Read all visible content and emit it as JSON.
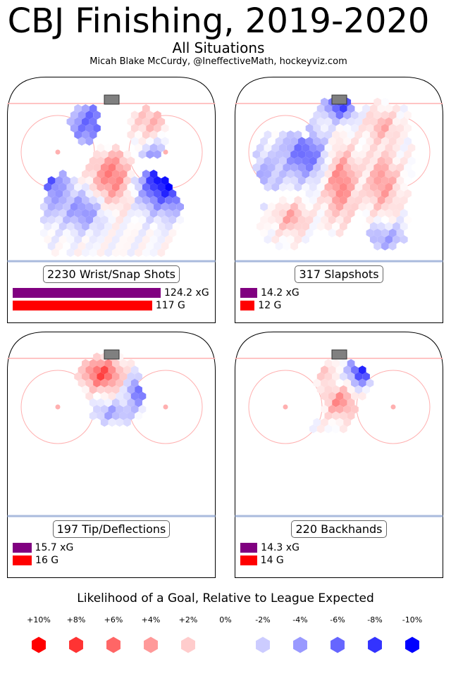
{
  "title": "CBJ Finishing, 2019-2020",
  "subtitle": "All Situations",
  "credit": "Micah Blake McCurdy, @IneffectiveMath, hockeyviz.com",
  "legend": {
    "title": "Likelihood of a Goal, Relative to League Expected",
    "labels": [
      "+10%",
      "+8%",
      "+6%",
      "+4%",
      "+2%",
      "0%",
      "-2%",
      "-4%",
      "-6%",
      "-8%",
      "-10%"
    ],
    "colors": [
      "#ff0000",
      "#ff3333",
      "#ff6666",
      "#ff9999",
      "#ffcccc",
      "#ffffff",
      "#ccccff",
      "#9999ff",
      "#6666ff",
      "#3333ff",
      "#0000ff"
    ]
  },
  "chart_data": [
    {
      "type": "heatmap",
      "title": "2230 Wrist/Snap Shots",
      "xg": 124.2,
      "xg_label": "124.2 xG",
      "goals": 117,
      "g_label": "117 G"
    },
    {
      "type": "heatmap",
      "title": "317 Slapshots",
      "xg": 14.2,
      "xg_label": "14.2 xG",
      "goals": 12,
      "g_label": "12 G"
    },
    {
      "type": "heatmap",
      "title": "197 Tip/Deflections",
      "xg": 15.7,
      "xg_label": "15.7 xG",
      "goals": 16,
      "g_label": "16 G"
    },
    {
      "type": "heatmap",
      "title": "220 Backhands",
      "xg": 14.3,
      "xg_label": "14.3 xG",
      "goals": 14,
      "g_label": "14 G"
    }
  ]
}
